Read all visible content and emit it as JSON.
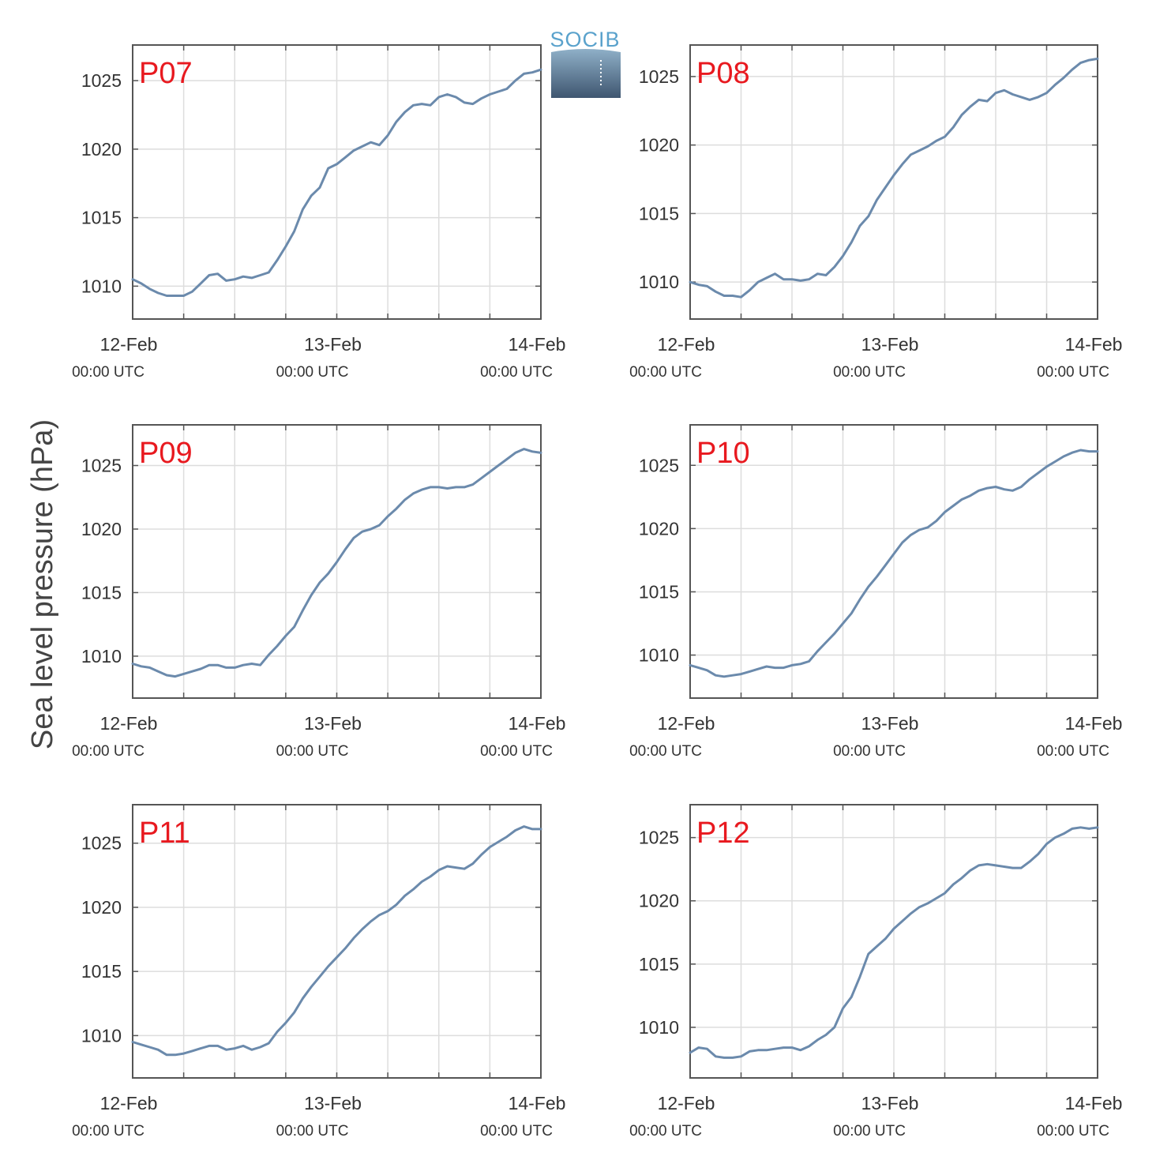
{
  "figure": {
    "ylabel": "Sea level pressure (hPa)",
    "logo_text": "SOCIB",
    "colors": {
      "line": "#6b8aac",
      "panel_label": "#e8191f",
      "grid": "#dddddd",
      "axis": "#555555"
    }
  },
  "chart_data": [
    {
      "type": "line",
      "title": "P07",
      "xlabel": "",
      "ylabel": "Sea level pressure (hPa)",
      "x_unit": "hours since 12-Feb 00:00 UTC",
      "xlim": [
        0,
        48
      ],
      "ylim": [
        1007.6,
        1027.6
      ],
      "yticks": [
        1010,
        1015,
        1020,
        1025
      ],
      "xtick_labels": [
        {
          "date": "12-Feb",
          "time": "00:00 UTC"
        },
        {
          "date": "13-Feb",
          "time": "00:00 UTC"
        },
        {
          "date": "14-Feb",
          "time": "00:00 UTC"
        }
      ],
      "grid": true,
      "series": [
        {
          "x": [
            0,
            1,
            2,
            3,
            4,
            5,
            6,
            7,
            8,
            9,
            10,
            11,
            12,
            13,
            14,
            15,
            16,
            17,
            18,
            19,
            20,
            21,
            22,
            23,
            24,
            25,
            26,
            27,
            28,
            29,
            30,
            31,
            32,
            33,
            34,
            35,
            36,
            37,
            38,
            39,
            40,
            41,
            42,
            43,
            44,
            45,
            46,
            47,
            48
          ],
          "y": [
            1010.5,
            1010.2,
            1009.8,
            1009.5,
            1009.3,
            1009.3,
            1009.3,
            1009.6,
            1010.2,
            1010.8,
            1010.9,
            1010.4,
            1010.5,
            1010.7,
            1010.6,
            1010.8,
            1011.0,
            1011.9,
            1012.9,
            1014.0,
            1015.6,
            1016.6,
            1017.2,
            1018.6,
            1018.9,
            1019.4,
            1019.9,
            1020.2,
            1020.5,
            1020.3,
            1021.0,
            1022.0,
            1022.7,
            1023.2,
            1023.3,
            1023.2,
            1023.8,
            1024.0,
            1023.8,
            1023.4,
            1023.3,
            1023.7,
            1024.0,
            1024.2,
            1024.4,
            1025.0,
            1025.5,
            1025.6,
            1025.8
          ]
        }
      ]
    },
    {
      "type": "line",
      "title": "P08",
      "xlabel": "",
      "ylabel": "Sea level pressure (hPa)",
      "x_unit": "hours since 12-Feb 00:00 UTC",
      "xlim": [
        0,
        48
      ],
      "ylim": [
        1007.3,
        1027.3
      ],
      "yticks": [
        1010,
        1015,
        1020,
        1025
      ],
      "xtick_labels": [
        {
          "date": "12-Feb",
          "time": "00:00 UTC"
        },
        {
          "date": "13-Feb",
          "time": "00:00 UTC"
        },
        {
          "date": "14-Feb",
          "time": "00:00 UTC"
        }
      ],
      "grid": true,
      "series": [
        {
          "x": [
            0,
            1,
            2,
            3,
            4,
            5,
            6,
            7,
            8,
            9,
            10,
            11,
            12,
            13,
            14,
            15,
            16,
            17,
            18,
            19,
            20,
            21,
            22,
            23,
            24,
            25,
            26,
            27,
            28,
            29,
            30,
            31,
            32,
            33,
            34,
            35,
            36,
            37,
            38,
            39,
            40,
            41,
            42,
            43,
            44,
            45,
            46,
            47,
            48
          ],
          "y": [
            1010.0,
            1009.8,
            1009.7,
            1009.3,
            1009.0,
            1009.0,
            1008.9,
            1009.4,
            1010.0,
            1010.3,
            1010.6,
            1010.2,
            1010.2,
            1010.1,
            1010.2,
            1010.6,
            1010.5,
            1011.1,
            1011.9,
            1012.9,
            1014.1,
            1014.8,
            1016.0,
            1016.9,
            1017.8,
            1018.6,
            1019.3,
            1019.6,
            1019.9,
            1020.3,
            1020.6,
            1021.3,
            1022.2,
            1022.8,
            1023.3,
            1023.2,
            1023.8,
            1024.0,
            1023.7,
            1023.5,
            1023.3,
            1023.5,
            1023.8,
            1024.4,
            1024.9,
            1025.5,
            1026.0,
            1026.2,
            1026.3
          ]
        }
      ]
    },
    {
      "type": "line",
      "title": "P09",
      "xlabel": "",
      "ylabel": "Sea level pressure (hPa)",
      "x_unit": "hours since 12-Feb 00:00 UTC",
      "xlim": [
        0,
        48
      ],
      "ylim": [
        1006.7,
        1028.2
      ],
      "yticks": [
        1010,
        1015,
        1020,
        1025
      ],
      "xtick_labels": [
        {
          "date": "12-Feb",
          "time": "00:00 UTC"
        },
        {
          "date": "13-Feb",
          "time": "00:00 UTC"
        },
        {
          "date": "14-Feb",
          "time": "00:00 UTC"
        }
      ],
      "grid": true,
      "series": [
        {
          "x": [
            0,
            1,
            2,
            3,
            4,
            5,
            6,
            7,
            8,
            9,
            10,
            11,
            12,
            13,
            14,
            15,
            16,
            17,
            18,
            19,
            20,
            21,
            22,
            23,
            24,
            25,
            26,
            27,
            28,
            29,
            30,
            31,
            32,
            33,
            34,
            35,
            36,
            37,
            38,
            39,
            40,
            41,
            42,
            43,
            44,
            45,
            46,
            47,
            48
          ],
          "y": [
            1009.4,
            1009.2,
            1009.1,
            1008.8,
            1008.5,
            1008.4,
            1008.6,
            1008.8,
            1009.0,
            1009.3,
            1009.3,
            1009.1,
            1009.1,
            1009.3,
            1009.4,
            1009.3,
            1010.1,
            1010.8,
            1011.6,
            1012.3,
            1013.6,
            1014.8,
            1015.8,
            1016.5,
            1017.4,
            1018.4,
            1019.3,
            1019.8,
            1020.0,
            1020.3,
            1021.0,
            1021.6,
            1022.3,
            1022.8,
            1023.1,
            1023.3,
            1023.3,
            1023.2,
            1023.3,
            1023.3,
            1023.5,
            1024.0,
            1024.5,
            1025.0,
            1025.5,
            1026.0,
            1026.3,
            1026.1,
            1026.0
          ]
        }
      ]
    },
    {
      "type": "line",
      "title": "P10",
      "xlabel": "",
      "ylabel": "Sea level pressure (hPa)",
      "x_unit": "hours since 12-Feb 00:00 UTC",
      "xlim": [
        0,
        48
      ],
      "ylim": [
        1006.6,
        1028.2
      ],
      "yticks": [
        1010,
        1015,
        1020,
        1025
      ],
      "xtick_labels": [
        {
          "date": "12-Feb",
          "time": "00:00 UTC"
        },
        {
          "date": "13-Feb",
          "time": "00:00 UTC"
        },
        {
          "date": "14-Feb",
          "time": "00:00 UTC"
        }
      ],
      "grid": true,
      "series": [
        {
          "x": [
            0,
            1,
            2,
            3,
            4,
            5,
            6,
            7,
            8,
            9,
            10,
            11,
            12,
            13,
            14,
            15,
            16,
            17,
            18,
            19,
            20,
            21,
            22,
            23,
            24,
            25,
            26,
            27,
            28,
            29,
            30,
            31,
            32,
            33,
            34,
            35,
            36,
            37,
            38,
            39,
            40,
            41,
            42,
            43,
            44,
            45,
            46,
            47,
            48
          ],
          "y": [
            1009.2,
            1009.0,
            1008.8,
            1008.4,
            1008.3,
            1008.4,
            1008.5,
            1008.7,
            1008.9,
            1009.1,
            1009.0,
            1009.0,
            1009.2,
            1009.3,
            1009.5,
            1010.3,
            1011.0,
            1011.7,
            1012.5,
            1013.3,
            1014.4,
            1015.4,
            1016.2,
            1017.1,
            1018.0,
            1018.9,
            1019.5,
            1019.9,
            1020.1,
            1020.6,
            1021.3,
            1021.8,
            1022.3,
            1022.6,
            1023.0,
            1023.2,
            1023.3,
            1023.1,
            1023.0,
            1023.3,
            1023.9,
            1024.4,
            1024.9,
            1025.3,
            1025.7,
            1026.0,
            1026.2,
            1026.1,
            1026.1
          ]
        }
      ]
    },
    {
      "type": "line",
      "title": "P11",
      "xlabel": "",
      "ylabel": "Sea level pressure (hPa)",
      "x_unit": "hours since 12-Feb 00:00 UTC",
      "xlim": [
        0,
        48
      ],
      "ylim": [
        1006.7,
        1028.0
      ],
      "yticks": [
        1010,
        1015,
        1020,
        1025
      ],
      "xtick_labels": [
        {
          "date": "12-Feb",
          "time": "00:00 UTC"
        },
        {
          "date": "13-Feb",
          "time": "00:00 UTC"
        },
        {
          "date": "14-Feb",
          "time": "00:00 UTC"
        }
      ],
      "grid": true,
      "series": [
        {
          "x": [
            0,
            1,
            2,
            3,
            4,
            5,
            6,
            7,
            8,
            9,
            10,
            11,
            12,
            13,
            14,
            15,
            16,
            17,
            18,
            19,
            20,
            21,
            22,
            23,
            24,
            25,
            26,
            27,
            28,
            29,
            30,
            31,
            32,
            33,
            34,
            35,
            36,
            37,
            38,
            39,
            40,
            41,
            42,
            43,
            44,
            45,
            46,
            47,
            48
          ],
          "y": [
            1009.5,
            1009.3,
            1009.1,
            1008.9,
            1008.5,
            1008.5,
            1008.6,
            1008.8,
            1009.0,
            1009.2,
            1009.2,
            1008.9,
            1009.0,
            1009.2,
            1008.9,
            1009.1,
            1009.4,
            1010.3,
            1011.0,
            1011.8,
            1012.9,
            1013.8,
            1014.6,
            1015.4,
            1016.1,
            1016.8,
            1017.6,
            1018.3,
            1018.9,
            1019.4,
            1019.7,
            1020.2,
            1020.9,
            1021.4,
            1022.0,
            1022.4,
            1022.9,
            1023.2,
            1023.1,
            1023.0,
            1023.4,
            1024.1,
            1024.7,
            1025.1,
            1025.5,
            1026.0,
            1026.3,
            1026.1,
            1026.1
          ]
        }
      ]
    },
    {
      "type": "line",
      "title": "P12",
      "xlabel": "",
      "ylabel": "Sea level pressure (hPa)",
      "x_unit": "hours since 12-Feb 00:00 UTC",
      "xlim": [
        0,
        48
      ],
      "ylim": [
        1006.0,
        1027.6
      ],
      "yticks": [
        1010,
        1015,
        1020,
        1025
      ],
      "xtick_labels": [
        {
          "date": "12-Feb",
          "time": "00:00 UTC"
        },
        {
          "date": "13-Feb",
          "time": "00:00 UTC"
        },
        {
          "date": "14-Feb",
          "time": "00:00 UTC"
        }
      ],
      "grid": true,
      "series": [
        {
          "x": [
            0,
            1,
            2,
            3,
            4,
            5,
            6,
            7,
            8,
            9,
            10,
            11,
            12,
            13,
            14,
            15,
            16,
            17,
            18,
            19,
            20,
            21,
            22,
            23,
            24,
            25,
            26,
            27,
            28,
            29,
            30,
            31,
            32,
            33,
            34,
            35,
            36,
            37,
            38,
            39,
            40,
            41,
            42,
            43,
            44,
            45,
            46,
            47,
            48
          ],
          "y": [
            1008.0,
            1008.4,
            1008.3,
            1007.7,
            1007.6,
            1007.6,
            1007.7,
            1008.1,
            1008.2,
            1008.2,
            1008.3,
            1008.4,
            1008.4,
            1008.2,
            1008.5,
            1009.0,
            1009.4,
            1010.0,
            1011.5,
            1012.4,
            1014.0,
            1015.8,
            1016.4,
            1017.0,
            1017.8,
            1018.4,
            1019.0,
            1019.5,
            1019.8,
            1020.2,
            1020.6,
            1021.3,
            1021.8,
            1022.4,
            1022.8,
            1022.9,
            1022.8,
            1022.7,
            1022.6,
            1022.6,
            1023.1,
            1023.7,
            1024.5,
            1025.0,
            1025.3,
            1025.7,
            1025.8,
            1025.7,
            1025.8
          ]
        }
      ]
    }
  ]
}
